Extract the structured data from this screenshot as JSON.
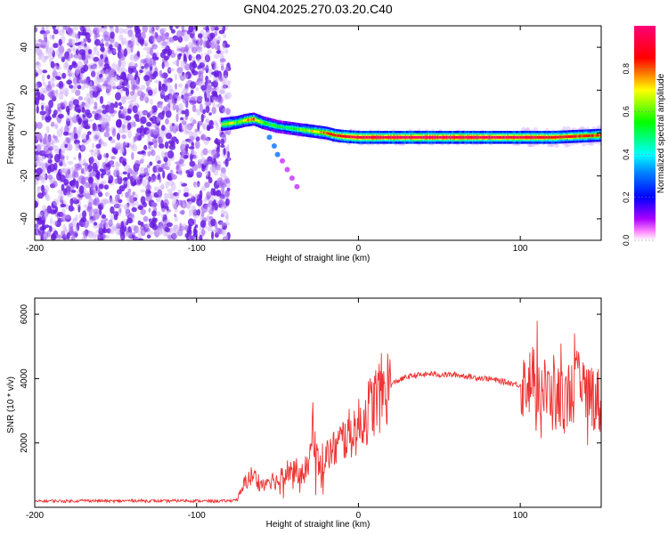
{
  "page": {
    "title": "GN04.2025.270.03.20.C40"
  },
  "chart_data": [
    {
      "type": "heatmap",
      "xlabel": "Height of straight line (km)",
      "ylabel": "Frequency (Hz)",
      "xlim": [
        -200,
        150
      ],
      "ylim": [
        -50,
        50
      ],
      "xticks": [
        -200,
        -100,
        0,
        100
      ],
      "yticks": [
        -40,
        -20,
        0,
        20,
        40
      ],
      "colorbar": {
        "label": "Normalized spectral amplitude",
        "range": [
          0,
          1
        ],
        "ticks": [
          0.0,
          0.2,
          0.4,
          0.6,
          0.8
        ],
        "colors": [
          "#ffffff",
          "#ff00ff",
          "#0000ff",
          "#00ffff",
          "#00ff00",
          "#ffff00",
          "#ff0000",
          "#ff007f"
        ]
      },
      "noise_region": {
        "x": [
          -200,
          -80
        ],
        "y": [
          -50,
          50
        ]
      },
      "ridge": {
        "x": [
          -85,
          -80,
          -75,
          -70,
          -65,
          -60,
          -55,
          -50,
          -45,
          -40,
          -35,
          -30,
          -25,
          -20,
          -15,
          -10,
          0,
          20,
          50,
          80,
          100,
          120,
          135,
          150
        ],
        "y": [
          4,
          4.5,
          5,
          6,
          6.5,
          5,
          4,
          3,
          2.5,
          2,
          1.5,
          1,
          0.5,
          0,
          -1,
          -1.5,
          -2,
          -2,
          -2,
          -2,
          -2,
          -2,
          -1.5,
          -1
        ],
        "amplitude": [
          0.6,
          0.7,
          0.6,
          0.75,
          0.8,
          0.6,
          0.55,
          0.5,
          0.5,
          0.55,
          0.6,
          0.7,
          0.75,
          0.8,
          0.85,
          0.9,
          0.95,
          0.97,
          0.97,
          0.96,
          0.94,
          0.9,
          0.85,
          0.8
        ]
      },
      "secondary_track": {
        "x": [
          -55,
          -52,
          -50,
          -47,
          -44,
          -41,
          -38
        ],
        "y": [
          -2,
          -6,
          -10,
          -13,
          -17,
          -21,
          -25
        ]
      }
    },
    {
      "type": "line",
      "xlabel": "Height of straight line (km)",
      "ylabel": "SNR (10 * v/v)",
      "xlim": [
        -200,
        150
      ],
      "ylim": [
        0,
        6500
      ],
      "xticks": [
        -200,
        -100,
        0,
        100
      ],
      "yticks": [
        2000,
        4000,
        6000
      ],
      "series": [
        {
          "color": "#ee3333",
          "x": [
            -200,
            -190,
            -180,
            -170,
            -160,
            -150,
            -140,
            -130,
            -120,
            -110,
            -100,
            -90,
            -80,
            -75,
            -72,
            -70,
            -65,
            -60,
            -55,
            -50,
            -45,
            -40,
            -35,
            -30,
            -28,
            -25,
            -20,
            -15,
            -10,
            -5,
            0,
            5,
            10,
            15,
            20,
            25,
            30,
            35,
            40,
            45,
            50,
            60,
            70,
            80,
            90,
            100,
            105,
            110,
            115,
            120,
            125,
            130,
            135,
            140,
            145,
            150
          ],
          "y": [
            180,
            200,
            190,
            210,
            200,
            190,
            210,
            200,
            190,
            210,
            200,
            190,
            200,
            250,
            500,
            800,
            1000,
            700,
            900,
            800,
            1100,
            1200,
            1000,
            1400,
            2700,
            1400,
            1600,
            1800,
            2100,
            2300,
            2500,
            2900,
            3300,
            3600,
            3800,
            3950,
            4050,
            4100,
            4120,
            4150,
            4120,
            4120,
            4050,
            4000,
            3900,
            3800,
            3900,
            4000,
            3600,
            3400,
            3300,
            3500,
            3800,
            3600,
            3500,
            3200
          ]
        }
      ]
    }
  ]
}
